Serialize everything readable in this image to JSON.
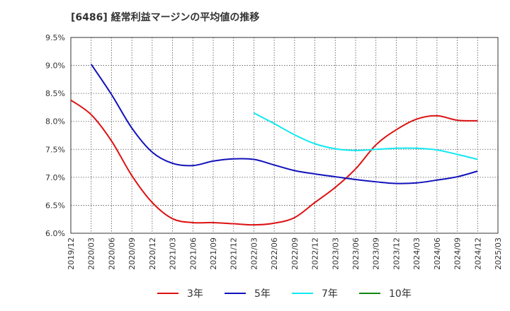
{
  "chart_data": {
    "type": "line",
    "title": "[6486]  経常利益マージンの平均値の推移",
    "x_ticks": [
      "2019/12",
      "2020/03",
      "2020/06",
      "2020/09",
      "2020/12",
      "2021/03",
      "2021/06",
      "2021/09",
      "2021/12",
      "2022/03",
      "2022/06",
      "2022/09",
      "2022/12",
      "2023/03",
      "2023/06",
      "2023/09",
      "2023/12",
      "2024/03",
      "2024/06",
      "2024/09",
      "2024/12",
      "2025/03"
    ],
    "y_ticks": [
      "6.0%",
      "6.5%",
      "7.0%",
      "7.5%",
      "8.0%",
      "8.5%",
      "9.0%",
      "9.5%"
    ],
    "ylim": [
      6.0,
      9.5
    ],
    "grid": true,
    "legend_position": "bottom",
    "series": [
      {
        "name": "3年",
        "color": "#dd1111",
        "x": [
          "2019/12",
          "2020/03",
          "2020/06",
          "2020/09",
          "2020/12",
          "2021/03",
          "2021/06",
          "2021/09",
          "2021/12",
          "2022/03",
          "2022/06",
          "2022/09",
          "2022/12",
          "2023/03",
          "2023/06",
          "2023/09",
          "2023/12",
          "2024/03",
          "2024/06",
          "2024/09",
          "2024/12"
        ],
        "values": [
          8.38,
          8.12,
          7.65,
          7.03,
          6.55,
          6.26,
          6.19,
          6.19,
          6.17,
          6.15,
          6.18,
          6.28,
          6.55,
          6.82,
          7.15,
          7.58,
          7.85,
          8.04,
          8.1,
          8.02,
          8.01
        ]
      },
      {
        "name": "5年",
        "color": "#1111bb",
        "x": [
          "2020/03",
          "2020/06",
          "2020/09",
          "2020/12",
          "2021/03",
          "2021/06",
          "2021/09",
          "2021/12",
          "2022/03",
          "2022/06",
          "2022/09",
          "2022/12",
          "2023/03",
          "2023/06",
          "2023/09",
          "2023/12",
          "2024/03",
          "2024/06",
          "2024/09",
          "2024/12"
        ],
        "values": [
          9.02,
          8.48,
          7.88,
          7.45,
          7.25,
          7.21,
          7.29,
          7.33,
          7.32,
          7.22,
          7.12,
          7.06,
          7.01,
          6.96,
          6.92,
          6.89,
          6.9,
          6.95,
          7.01,
          7.11
        ]
      },
      {
        "name": "7年",
        "color": "#11e8f0",
        "x": [
          "2022/03",
          "2022/06",
          "2022/09",
          "2022/12",
          "2023/03",
          "2023/06",
          "2023/09",
          "2023/12",
          "2024/03",
          "2024/06",
          "2024/09",
          "2024/12"
        ],
        "values": [
          8.15,
          7.96,
          7.76,
          7.6,
          7.51,
          7.48,
          7.5,
          7.52,
          7.52,
          7.49,
          7.41,
          7.32
        ]
      },
      {
        "name": "10年",
        "color": "#118811",
        "x": [],
        "values": []
      }
    ]
  }
}
